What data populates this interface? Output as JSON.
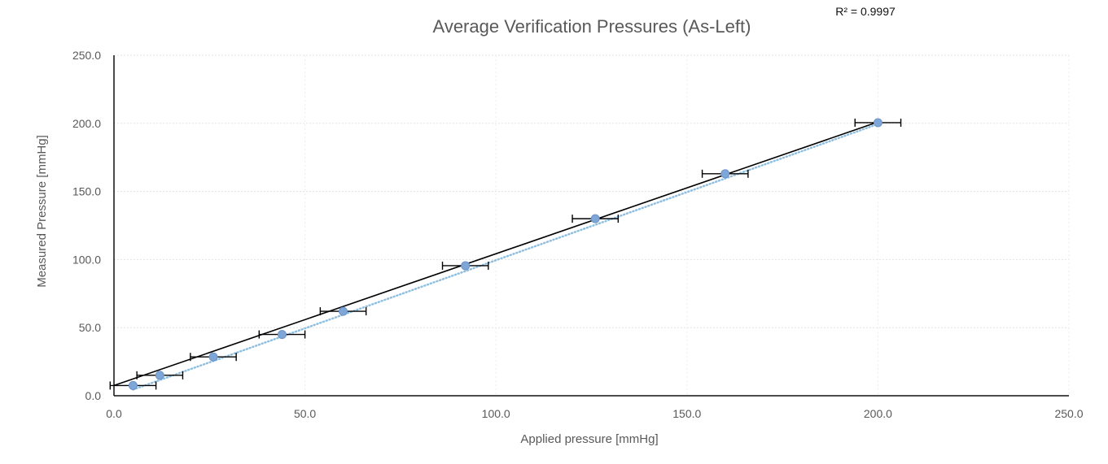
{
  "chart_data": {
    "type": "scatter",
    "title": "Average Verification Pressures (As-Left)",
    "xlabel": "Applied pressure  [mmHg]",
    "ylabel": "Measured Pressure [mmHg]",
    "xlim": [
      0,
      250
    ],
    "ylim": [
      0,
      250
    ],
    "x_ticks": [
      "0.0",
      "50.0",
      "100.0",
      "150.0",
      "200.0",
      "250.0"
    ],
    "y_ticks": [
      "0.0",
      "50.0",
      "100.0",
      "150.0",
      "200.0",
      "250.0"
    ],
    "grid": true,
    "r_squared_label": "R² = 0.9997",
    "points": [
      {
        "x": 5,
        "y": 7.5
      },
      {
        "x": 12,
        "y": 15
      },
      {
        "x": 26,
        "y": 28.5
      },
      {
        "x": 44,
        "y": 45
      },
      {
        "x": 60,
        "y": 62
      },
      {
        "x": 92,
        "y": 95.5
      },
      {
        "x": 126,
        "y": 130
      },
      {
        "x": 160,
        "y": 163
      },
      {
        "x": 200,
        "y": 200.5
      }
    ],
    "x_error": 6,
    "reference_line": {
      "x": [
        0,
        200
      ],
      "y": [
        7.5,
        201
      ]
    },
    "trendline": {
      "x": [
        5,
        200
      ],
      "y": [
        4.5,
        199.5
      ]
    },
    "colors": {
      "marker": "#7ea6d6",
      "reference_line": "#000000",
      "trendline": "#8fbfe0",
      "error_bar": "#000000"
    }
  }
}
